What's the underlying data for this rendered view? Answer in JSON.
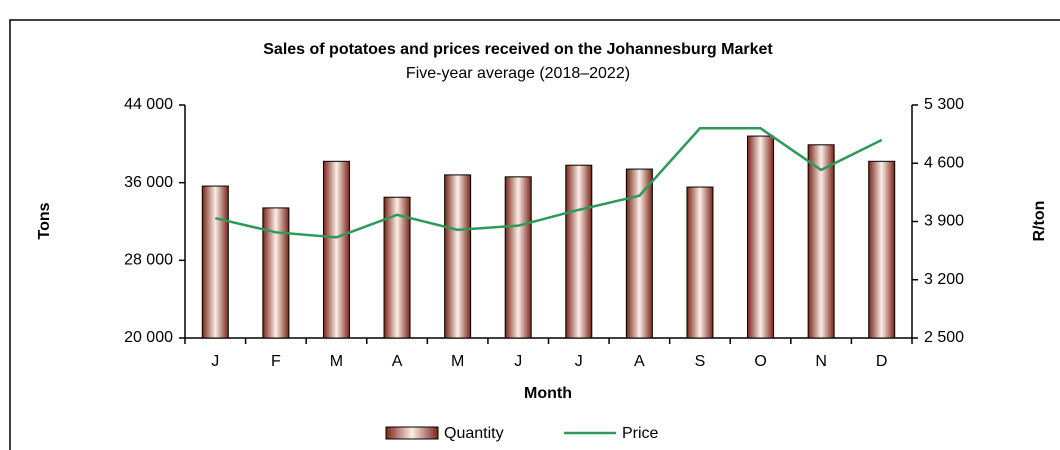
{
  "chart_data": {
    "type": "bar_line",
    "title": "Sales of potatoes and prices received on the Johannesburg Market",
    "subtitle": "Five-year average (2018–2022)",
    "xlabel": "Month",
    "ylabel": "Tons",
    "y2label": "R/ton",
    "categories": [
      "J",
      "F",
      "M",
      "A",
      "M",
      "J",
      "J",
      "A",
      "S",
      "O",
      "N",
      "D"
    ],
    "series": [
      {
        "name": "Quantity",
        "type": "bar",
        "color": "#7a2418",
        "values": [
          35650,
          33400,
          38200,
          34500,
          36800,
          36600,
          37800,
          37400,
          35550,
          40800,
          39900,
          38200
        ]
      },
      {
        "name": "Price",
        "type": "line",
        "axis": "y2",
        "color": "#2e9a5a",
        "values": [
          3940,
          3770,
          3710,
          3980,
          3800,
          3850,
          4040,
          4210,
          5020,
          5020,
          4520,
          4880
        ]
      }
    ],
    "ylim": [
      20000,
      44000
    ],
    "yticks": [
      {
        "value": 20000,
        "label": "20 000"
      },
      {
        "value": 28000,
        "label": "28 000"
      },
      {
        "value": 36000,
        "label": "36 000"
      },
      {
        "value": 44000,
        "label": "44 000"
      }
    ],
    "y2lim": [
      2500,
      5300
    ],
    "y2ticks": [
      {
        "value": 2500,
        "label": "2 500"
      },
      {
        "value": 3200,
        "label": "3 200"
      },
      {
        "value": 3900,
        "label": "3 900"
      },
      {
        "value": 4600,
        "label": "4 600"
      },
      {
        "value": 5300,
        "label": "5 300"
      }
    ],
    "legend": "bottom"
  }
}
